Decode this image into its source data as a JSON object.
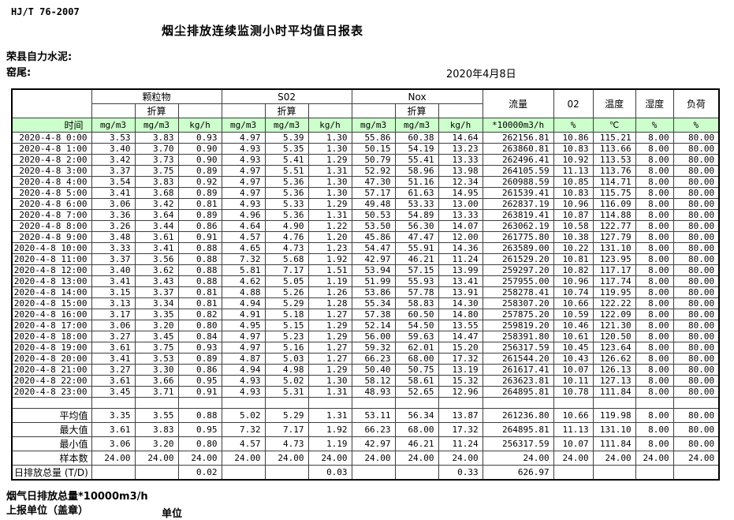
{
  "page": {
    "standard_code": "HJ/T  76-2007",
    "title": "烟尘排放连续监测小时平均值日报表",
    "company": "荣县自力水泥:",
    "site": "窑尾:",
    "date": "2020年4月8日"
  },
  "colors": {
    "header_green": "#ccffcc",
    "grid_line": "#3f3f3f"
  },
  "table": {
    "time_header": "时间",
    "converted_label": "折算",
    "groups": [
      {
        "label": "颗粒物"
      },
      {
        "label": "S02"
      },
      {
        "label": "Nox"
      }
    ],
    "single_columns": [
      {
        "label": "流量"
      },
      {
        "label": "02"
      },
      {
        "label": "温度"
      },
      {
        "label": "湿度"
      },
      {
        "label": "负荷"
      }
    ],
    "unit_row": [
      "mg/m3",
      "mg/m3",
      "kg/h",
      "mg/m3",
      "mg/m3",
      "kg/h",
      "mg/m3",
      "mg/m3",
      "kg/h",
      "*10000m3/h",
      "%",
      "℃",
      "%",
      "%"
    ],
    "rows": [
      {
        "time": "2020-4-8 0:00",
        "values": [
          "3.53",
          "3.83",
          "0.93",
          "4.97",
          "5.39",
          "1.30",
          "55.86",
          "60.38",
          "14.64",
          "262156.81",
          "10.86",
          "115.21",
          "8.00",
          "80.00"
        ]
      },
      {
        "time": "2020-4-8 1:00",
        "values": [
          "3.40",
          "3.70",
          "0.90",
          "4.93",
          "5.35",
          "1.30",
          "50.15",
          "54.19",
          "13.23",
          "263860.81",
          "10.83",
          "113.66",
          "8.00",
          "80.00"
        ]
      },
      {
        "time": "2020-4-8 2:00",
        "values": [
          "3.42",
          "3.73",
          "0.90",
          "4.93",
          "5.41",
          "1.29",
          "50.79",
          "55.41",
          "13.33",
          "262496.41",
          "10.92",
          "113.53",
          "8.00",
          "80.00"
        ]
      },
      {
        "time": "2020-4-8 3:00",
        "values": [
          "3.37",
          "3.75",
          "0.89",
          "4.97",
          "5.51",
          "1.31",
          "52.92",
          "58.96",
          "13.98",
          "264105.59",
          "11.13",
          "113.76",
          "8.00",
          "80.00"
        ]
      },
      {
        "time": "2020-4-8 4:00",
        "values": [
          "3.54",
          "3.83",
          "0.92",
          "4.97",
          "5.36",
          "1.30",
          "47.30",
          "51.16",
          "12.34",
          "260988.59",
          "10.85",
          "114.71",
          "8.00",
          "80.00"
        ]
      },
      {
        "time": "2020-4-8 5:00",
        "values": [
          "3.41",
          "3.68",
          "0.89",
          "4.97",
          "5.36",
          "1.30",
          "57.17",
          "61.63",
          "14.95",
          "261539.41",
          "10.83",
          "115.75",
          "8.00",
          "80.00"
        ]
      },
      {
        "time": "2020-4-8 6:00",
        "values": [
          "3.06",
          "3.42",
          "0.81",
          "4.93",
          "5.33",
          "1.29",
          "49.48",
          "53.33",
          "13.00",
          "262837.19",
          "10.96",
          "116.09",
          "8.00",
          "80.00"
        ]
      },
      {
        "time": "2020-4-8 7:00",
        "values": [
          "3.36",
          "3.64",
          "0.89",
          "4.96",
          "5.36",
          "1.31",
          "50.53",
          "54.89",
          "13.33",
          "263819.41",
          "10.87",
          "114.88",
          "8.00",
          "80.00"
        ]
      },
      {
        "time": "2020-4-8 8:00",
        "values": [
          "3.26",
          "3.44",
          "0.86",
          "4.64",
          "4.90",
          "1.22",
          "53.50",
          "56.30",
          "14.07",
          "263062.19",
          "10.58",
          "122.77",
          "8.00",
          "80.00"
        ]
      },
      {
        "time": "2020-4-8 9:00",
        "values": [
          "3.48",
          "3.61",
          "0.91",
          "4.57",
          "4.76",
          "1.20",
          "45.86",
          "47.47",
          "12.00",
          "261775.80",
          "10.38",
          "127.79",
          "8.00",
          "80.00"
        ]
      },
      {
        "time": "2020-4-8 10:00",
        "values": [
          "3.33",
          "3.41",
          "0.88",
          "4.65",
          "4.73",
          "1.23",
          "54.47",
          "55.91",
          "14.36",
          "263589.00",
          "10.22",
          "131.10",
          "8.00",
          "80.00"
        ]
      },
      {
        "time": "2020-4-8 11:00",
        "values": [
          "3.37",
          "3.56",
          "0.88",
          "7.32",
          "5.68",
          "1.92",
          "42.97",
          "46.21",
          "11.24",
          "261529.20",
          "10.81",
          "123.95",
          "8.00",
          "80.00"
        ]
      },
      {
        "time": "2020-4-8 12:00",
        "values": [
          "3.40",
          "3.62",
          "0.88",
          "5.81",
          "7.17",
          "1.51",
          "53.94",
          "57.15",
          "13.99",
          "259297.20",
          "10.82",
          "117.17",
          "8.00",
          "80.00"
        ]
      },
      {
        "time": "2020-4-8 13:00",
        "values": [
          "3.41",
          "3.43",
          "0.88",
          "4.62",
          "5.05",
          "1.19",
          "51.99",
          "55.93",
          "13.41",
          "257955.00",
          "10.96",
          "117.74",
          "8.00",
          "80.00"
        ]
      },
      {
        "time": "2020-4-8 14:00",
        "values": [
          "3.15",
          "3.37",
          "0.81",
          "4.88",
          "5.26",
          "1.26",
          "53.86",
          "57.78",
          "13.91",
          "258278.41",
          "10.74",
          "119.95",
          "8.00",
          "80.00"
        ]
      },
      {
        "time": "2020-4-8 15:00",
        "values": [
          "3.13",
          "3.34",
          "0.81",
          "4.94",
          "5.29",
          "1.28",
          "55.34",
          "58.83",
          "14.30",
          "258307.20",
          "10.66",
          "122.22",
          "8.00",
          "80.00"
        ]
      },
      {
        "time": "2020-4-8 16:00",
        "values": [
          "3.17",
          "3.35",
          "0.82",
          "4.91",
          "5.18",
          "1.27",
          "57.38",
          "60.50",
          "14.80",
          "257875.20",
          "10.59",
          "122.09",
          "8.00",
          "80.00"
        ]
      },
      {
        "time": "2020-4-8 17:00",
        "values": [
          "3.06",
          "3.20",
          "0.80",
          "4.95",
          "5.15",
          "1.29",
          "52.14",
          "54.50",
          "13.55",
          "259819.20",
          "10.46",
          "121.30",
          "8.00",
          "80.00"
        ]
      },
      {
        "time": "2020-4-8 18:00",
        "values": [
          "3.27",
          "3.45",
          "0.84",
          "4.97",
          "5.23",
          "1.29",
          "56.00",
          "59.63",
          "14.47",
          "258391.80",
          "10.61",
          "120.50",
          "8.00",
          "80.00"
        ]
      },
      {
        "time": "2020-4-8 19:00",
        "values": [
          "3.61",
          "3.75",
          "0.93",
          "4.97",
          "5.16",
          "1.27",
          "59.32",
          "62.01",
          "15.20",
          "256317.59",
          "10.45",
          "123.64",
          "8.00",
          "80.00"
        ]
      },
      {
        "time": "2020-4-8 20:00",
        "values": [
          "3.41",
          "3.53",
          "0.89",
          "4.87",
          "5.03",
          "1.27",
          "66.23",
          "68.00",
          "17.32",
          "261544.20",
          "10.43",
          "126.62",
          "8.00",
          "80.00"
        ]
      },
      {
        "time": "2020-4-8 21:00",
        "values": [
          "3.27",
          "3.30",
          "0.86",
          "4.94",
          "4.98",
          "1.29",
          "50.40",
          "50.75",
          "13.19",
          "261617.41",
          "10.07",
          "126.13",
          "8.00",
          "80.00"
        ]
      },
      {
        "time": "2020-4-8 22:00",
        "values": [
          "3.61",
          "3.66",
          "0.95",
          "4.93",
          "5.02",
          "1.30",
          "58.12",
          "58.61",
          "15.32",
          "263623.81",
          "10.11",
          "127.13",
          "8.00",
          "80.00"
        ]
      },
      {
        "time": "2020-4-8 23:00",
        "values": [
          "3.45",
          "3.71",
          "0.91",
          "4.93",
          "5.31",
          "1.31",
          "48.93",
          "52.65",
          "12.96",
          "264895.81",
          "10.78",
          "111.84",
          "8.00",
          "80.00"
        ]
      }
    ],
    "summary": [
      {
        "label": "平均值",
        "align": "right",
        "values": [
          "3.35",
          "3.55",
          "0.88",
          "5.02",
          "5.29",
          "1.31",
          "53.11",
          "56.34",
          "13.87",
          "261236.80",
          "10.66",
          "119.98",
          "8.00",
          "80.00"
        ]
      },
      {
        "label": "最大值",
        "align": "right",
        "values": [
          "3.61",
          "3.83",
          "0.95",
          "7.32",
          "7.17",
          "1.92",
          "66.23",
          "68.00",
          "17.32",
          "264895.81",
          "11.13",
          "131.10",
          "8.00",
          "80.00"
        ]
      },
      {
        "label": "最小值",
        "align": "right",
        "values": [
          "3.06",
          "3.20",
          "0.80",
          "4.57",
          "4.73",
          "1.19",
          "42.97",
          "46.21",
          "11.24",
          "256317.59",
          "10.07",
          "111.84",
          "8.00",
          "80.00"
        ]
      },
      {
        "label": "样本数",
        "align": "right",
        "values": [
          "24.00",
          "24.00",
          "24.00",
          "24.00",
          "24.00",
          "24.00",
          "24.00",
          "24.00",
          "24.00",
          "24.00",
          "24.00",
          "24.00",
          "24.00",
          "24.00"
        ]
      },
      {
        "label": "日排放总量 (T/D)",
        "align": "left",
        "values": [
          "",
          "",
          "0.02",
          "",
          "",
          "0.03",
          "",
          "",
          "0.33",
          "626.97",
          "",
          "",
          "",
          ""
        ]
      }
    ]
  },
  "footer": {
    "note": "烟气日排放总量*10000m3/h",
    "report_unit": "上报单位（盖章）",
    "unit_label": "单位"
  }
}
